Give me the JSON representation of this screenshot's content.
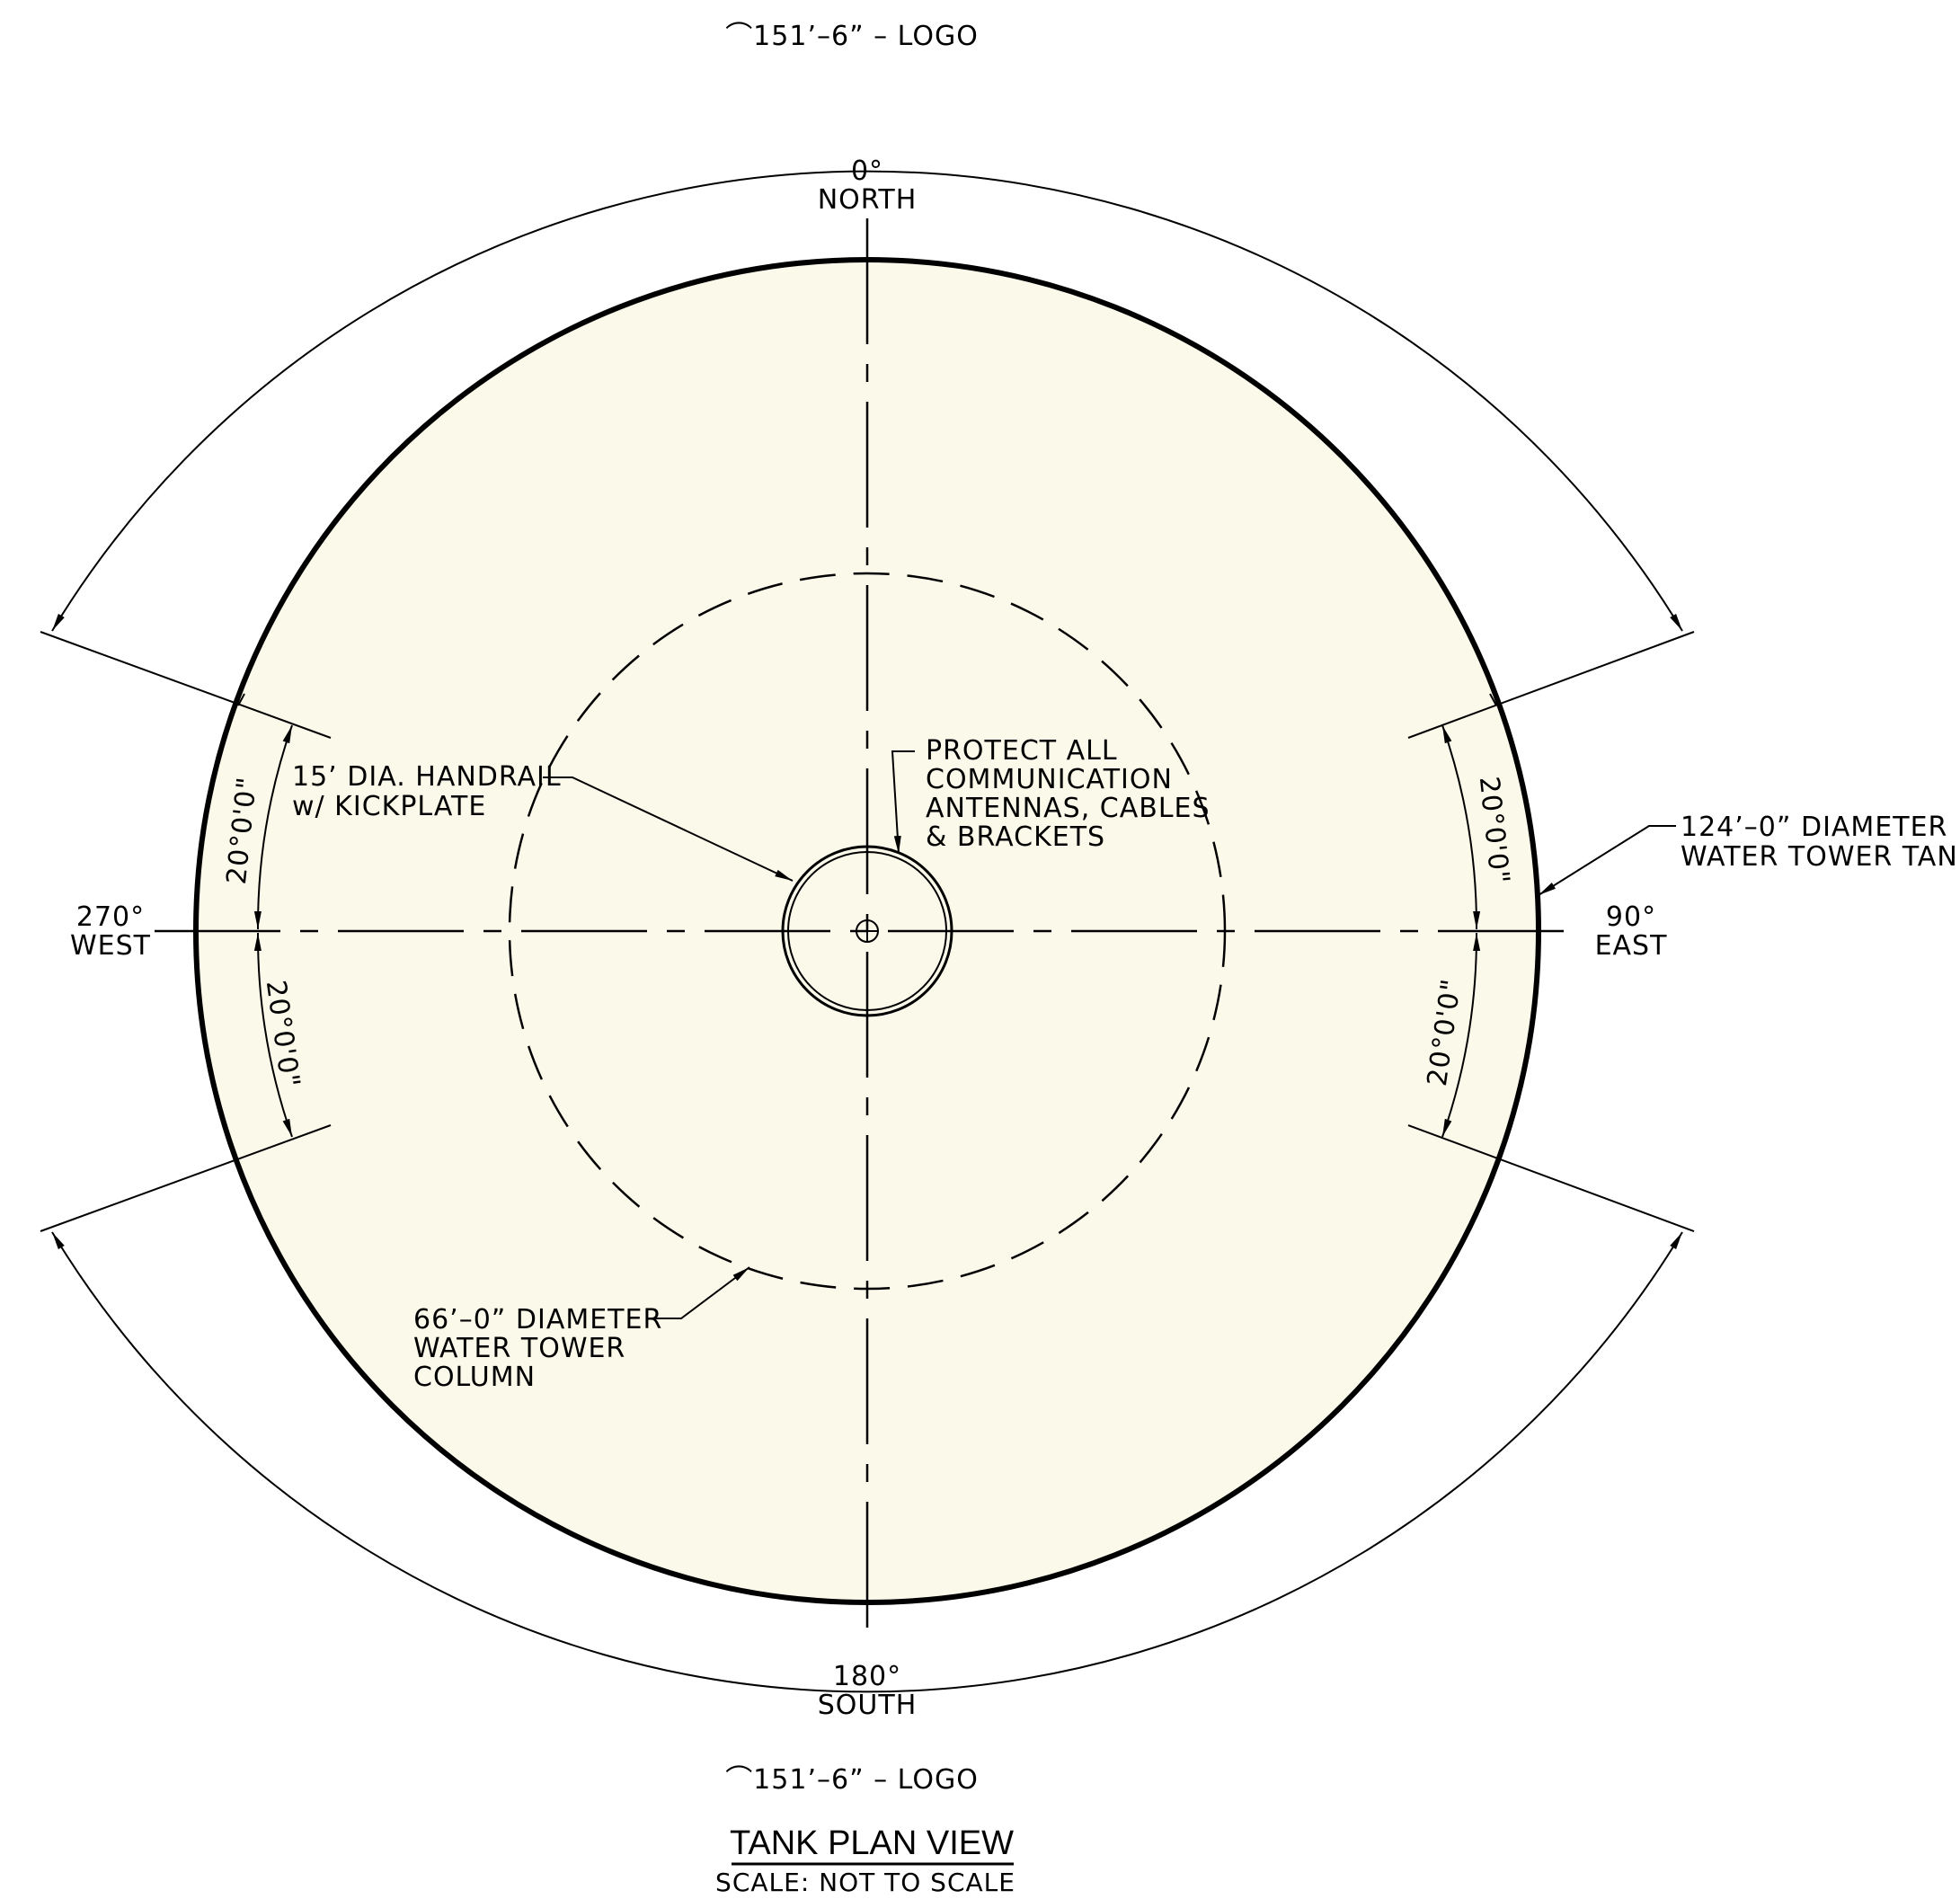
{
  "colors": {
    "tank_fill": "#fbf9ea",
    "line": "#000000",
    "background": "#ffffff"
  },
  "arc_top_label": "⌒151’–6”  –  LOGO",
  "arc_bottom_label": "⌒151’–6”  –  LOGO",
  "directions": {
    "north": {
      "degree": "0°",
      "name": "NORTH"
    },
    "east": {
      "degree": "90°",
      "name": "EAST"
    },
    "south": {
      "degree": "180°",
      "name": "SOUTH"
    },
    "west": {
      "degree": "270°",
      "name": "WEST"
    }
  },
  "angles": {
    "west_upper": "20°0'0\"",
    "west_lower": "20°0'0\"",
    "east_upper": "20°0'0\"",
    "east_lower": "20°0'0\""
  },
  "callouts": {
    "handrail": [
      "15’ DIA. HANDRAIL",
      "w/ KICKPLATE"
    ],
    "protect": [
      "PROTECT ALL",
      "COMMUNICATION",
      "ANTENNAS, CABLES",
      "& BRACKETS"
    ],
    "tank": [
      "124’–0” DIAMETER",
      "WATER TOWER TANK"
    ],
    "column": [
      "66’–0” DIAMETER",
      "WATER TOWER",
      "COLUMN"
    ]
  },
  "title": "TANK PLAN VIEW",
  "scale": "SCALE:  NOT  TO  SCALE"
}
